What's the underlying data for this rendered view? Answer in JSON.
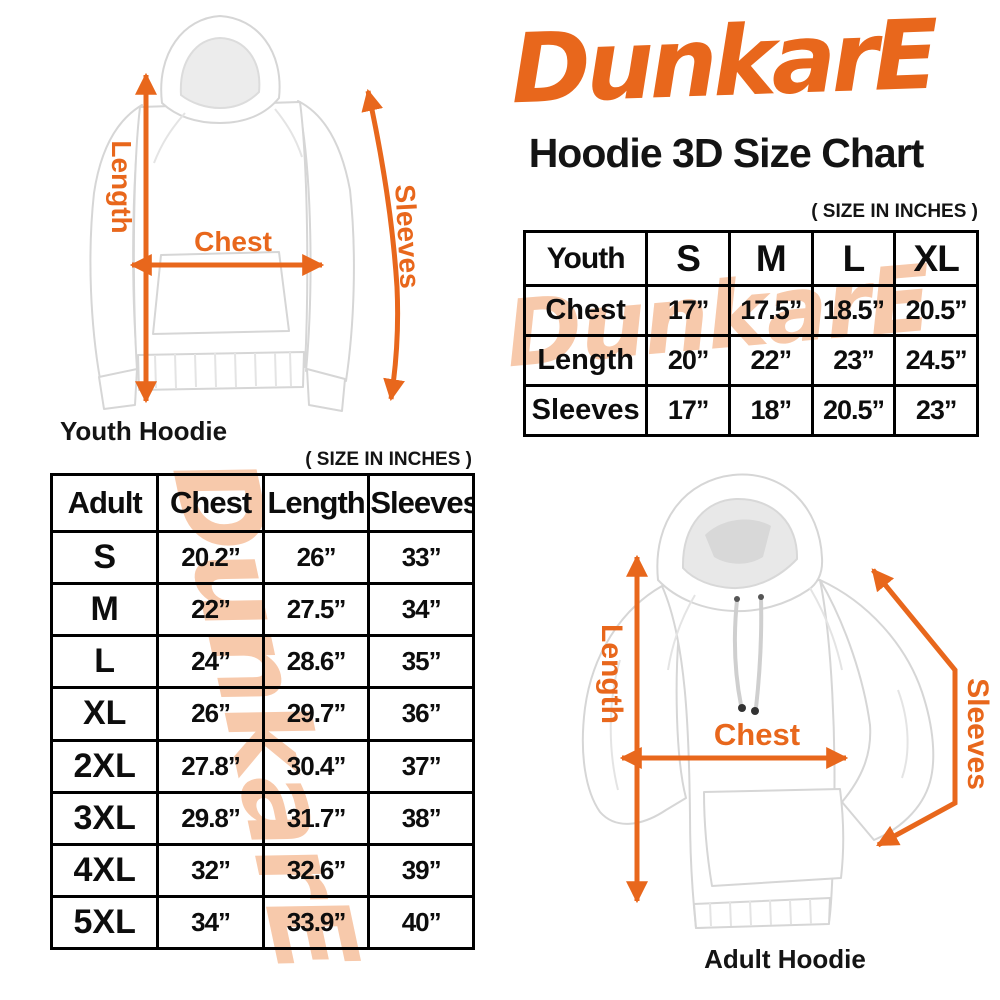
{
  "brand": {
    "logo_text": "DunkarE",
    "title": "Hoodie 3D Size Chart",
    "accent_color": "#E8671C",
    "watermark_color": "#F7C9AB",
    "watermark_text": "DunkarE"
  },
  "youth_figure": {
    "caption": "Youth Hoodie",
    "labels": {
      "length": "Length",
      "chest": "Chest",
      "sleeves": "Sleeves"
    }
  },
  "adult_figure": {
    "caption": "Adult Hoodie",
    "labels": {
      "length": "Length",
      "chest": "Chest",
      "sleeves": "Sleeves"
    }
  },
  "youth_table": {
    "size_note": "( SIZE IN INCHES )",
    "header": [
      "Youth",
      "S",
      "M",
      "L",
      "XL"
    ],
    "rows": [
      [
        "Chest",
        "17”",
        "17.5”",
        "18.5”",
        "20.5”"
      ],
      [
        "Length",
        "20”",
        "22”",
        "23”",
        "24.5”"
      ],
      [
        "Sleeves",
        "17”",
        "18”",
        "20.5”",
        "23”"
      ]
    ]
  },
  "adult_table": {
    "size_note": "( SIZE IN INCHES )",
    "header": [
      "Adult",
      "Chest",
      "Length",
      "Sleeves"
    ],
    "rows": [
      [
        "S",
        "20.2”",
        "26”",
        "33”"
      ],
      [
        "M",
        "22”",
        "27.5”",
        "34”"
      ],
      [
        "L",
        "24”",
        "28.6”",
        "35”"
      ],
      [
        "XL",
        "26”",
        "29.7”",
        "36”"
      ],
      [
        "2XL",
        "27.8”",
        "30.4”",
        "37”"
      ],
      [
        "3XL",
        "29.8”",
        "31.7”",
        "38”"
      ],
      [
        "4XL",
        "32”",
        "32.6”",
        "39”"
      ],
      [
        "5XL",
        "34”",
        "33.9”",
        "40”"
      ]
    ]
  }
}
